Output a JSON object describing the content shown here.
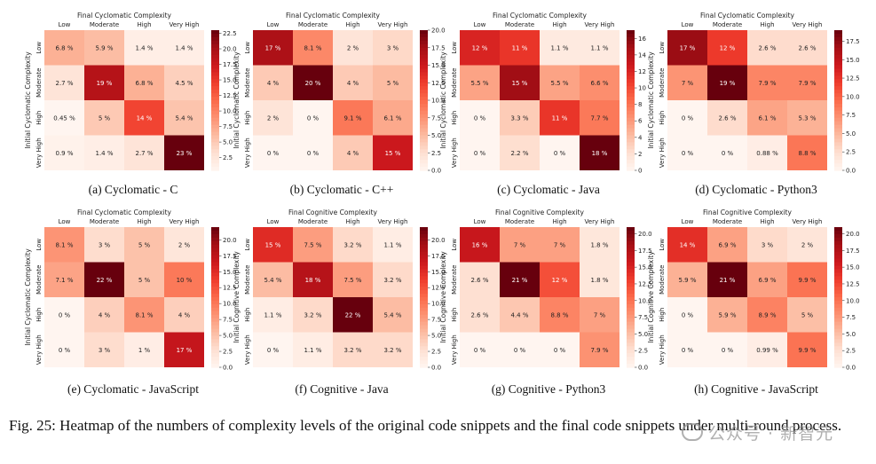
{
  "figure": {
    "caption": "Fig. 25: Heatmap of the numbers of complexity levels of the original code snippets and the final code snippets under multi-round process.",
    "watermark": "公众号 · 新智元"
  },
  "colors": {
    "scale": [
      "#fff5f0",
      "#fee0d2",
      "#fcbba1",
      "#fc9272",
      "#fb6a4a",
      "#ef3b2c",
      "#cb181d",
      "#a50f15",
      "#67000d"
    ]
  },
  "chart_data": [
    {
      "type": "heatmap",
      "caption": "(a) Cyclomatic - C",
      "title": "Final Cyclomatic Complexity",
      "ylabel": "Initial Cyclomatic Complexity",
      "x_categories": [
        "Low",
        "Moderate",
        "High",
        "Very High"
      ],
      "y_categories": [
        "Low",
        "Moderate",
        "High",
        "Very High"
      ],
      "values": [
        [
          6.8,
          5.9,
          1.4,
          1.4
        ],
        [
          2.7,
          19,
          6.8,
          4.5
        ],
        [
          0.45,
          5,
          14,
          5.4
        ],
        [
          0.9,
          1.4,
          2.7,
          23
        ]
      ],
      "labels": [
        [
          "6.8 %",
          "5.9 %",
          "1.4 %",
          "1.4 %"
        ],
        [
          "2.7 %",
          "19 %",
          "6.8 %",
          "4.5 %"
        ],
        [
          "0.45 %",
          "5 %",
          "14 %",
          "5.4 %"
        ],
        [
          "0.9 %",
          "1.4 %",
          "2.7 %",
          "23 %"
        ]
      ],
      "vmin": 0.45,
      "vmax": 23,
      "colorbar_ticks": [
        2.5,
        5.0,
        7.5,
        10.0,
        12.5,
        15.0,
        17.5,
        20.0,
        22.5
      ]
    },
    {
      "type": "heatmap",
      "caption": "(b) Cyclomatic - C++",
      "title": "Final Cyclomatic Complexity",
      "ylabel": "Initial Cyclomatic Complexity",
      "x_categories": [
        "Low",
        "Moderate",
        "High",
        "Very High"
      ],
      "y_categories": [
        "Low",
        "Moderate",
        "High",
        "Very High"
      ],
      "values": [
        [
          17,
          8.1,
          2,
          3
        ],
        [
          4,
          20,
          4,
          5
        ],
        [
          2,
          0,
          9.1,
          6.1
        ],
        [
          0,
          0,
          4,
          15
        ]
      ],
      "labels": [
        [
          "17 %",
          "8.1 %",
          "2 %",
          "3 %"
        ],
        [
          "4 %",
          "20 %",
          "4 %",
          "5 %"
        ],
        [
          "2 %",
          "0 %",
          "9.1 %",
          "6.1 %"
        ],
        [
          "0 %",
          "0 %",
          "4 %",
          "15 %"
        ]
      ],
      "vmin": 0,
      "vmax": 20,
      "colorbar_ticks": [
        0.0,
        2.5,
        5.0,
        7.5,
        10.0,
        12.5,
        15.0,
        17.5,
        20.0
      ]
    },
    {
      "type": "heatmap",
      "caption": "(c) Cyclomatic - Java",
      "title": "Final Cyclomatic Complexity",
      "ylabel": "Initial Cyclomatic Complexity",
      "x_categories": [
        "Low",
        "Moderate",
        "High",
        "Very High"
      ],
      "y_categories": [
        "Low",
        "Moderate",
        "High",
        "Very High"
      ],
      "values": [
        [
          12,
          11,
          1.1,
          1.1
        ],
        [
          5.5,
          15,
          5.5,
          6.6
        ],
        [
          0,
          3.3,
          11,
          7.7
        ],
        [
          0,
          2.2,
          0,
          18
        ]
      ],
      "labels": [
        [
          "12 %",
          "11 %",
          "1.1 %",
          "1.1 %"
        ],
        [
          "5.5 %",
          "15 %",
          "5.5 %",
          "6.6 %"
        ],
        [
          "0 %",
          "3.3 %",
          "11 %",
          "7.7 %"
        ],
        [
          "0 %",
          "2.2 %",
          "0 %",
          "18 %"
        ]
      ],
      "vmin": 0,
      "vmax": 17,
      "colorbar_ticks": [
        0,
        2,
        4,
        6,
        8,
        10,
        12,
        14,
        16
      ]
    },
    {
      "type": "heatmap",
      "caption": "(d) Cyclomatic - Python3",
      "title": "Final Cyclomatic Complexity",
      "ylabel": "Initial Cyclomatic Complexity",
      "x_categories": [
        "Low",
        "Moderate",
        "High",
        "Very High"
      ],
      "y_categories": [
        "Low",
        "Moderate",
        "High",
        "Very High"
      ],
      "values": [
        [
          17,
          12,
          2.6,
          2.6
        ],
        [
          7,
          19,
          7.9,
          7.9
        ],
        [
          0,
          2.6,
          6.1,
          5.3
        ],
        [
          0,
          0,
          0.88,
          8.8
        ]
      ],
      "labels": [
        [
          "17 %",
          "12 %",
          "2.6 %",
          "2.6 %"
        ],
        [
          "7 %",
          "19 %",
          "7.9 %",
          "7.9 %"
        ],
        [
          "0 %",
          "2.6 %",
          "6.1 %",
          "5.3 %"
        ],
        [
          "0 %",
          "0 %",
          "0.88 %",
          "8.8 %"
        ]
      ],
      "vmin": 0,
      "vmax": 19,
      "colorbar_ticks": [
        0.0,
        2.5,
        5.0,
        7.5,
        10.0,
        12.5,
        15.0,
        17.5
      ]
    },
    {
      "type": "heatmap",
      "caption": "(e) Cyclomatic - JavaScript",
      "title": "Final Cyclomatic Complexity",
      "ylabel": "Initial Cyclomatic Complexity",
      "x_categories": [
        "Low",
        "Moderate",
        "High",
        "Very High"
      ],
      "y_categories": [
        "Low",
        "Moderate",
        "High",
        "Very High"
      ],
      "values": [
        [
          8.1,
          3,
          5,
          2
        ],
        [
          7.1,
          22,
          5,
          10
        ],
        [
          0,
          4,
          8.1,
          4
        ],
        [
          0,
          3,
          1,
          17
        ]
      ],
      "labels": [
        [
          "8.1 %",
          "3 %",
          "5 %",
          "2 %"
        ],
        [
          "7.1 %",
          "22 %",
          "5 %",
          "10 %"
        ],
        [
          "0 %",
          "4 %",
          "8.1 %",
          "4 %"
        ],
        [
          "0 %",
          "3 %",
          "1 %",
          "17 %"
        ]
      ],
      "vmin": 0,
      "vmax": 22,
      "colorbar_ticks": [
        0.0,
        2.5,
        5.0,
        7.5,
        10.0,
        12.5,
        15.0,
        17.5,
        20.0
      ]
    },
    {
      "type": "heatmap",
      "caption": "(f) Cognitive - Java",
      "title": "Final Cognitive Complexity",
      "ylabel": "Initial Cognitive Complexity",
      "x_categories": [
        "Low",
        "Moderate",
        "High",
        "Very High"
      ],
      "y_categories": [
        "Low",
        "Moderate",
        "High",
        "Very High"
      ],
      "values": [
        [
          15,
          7.5,
          3.2,
          1.1
        ],
        [
          5.4,
          18,
          7.5,
          3.2
        ],
        [
          1.1,
          3.2,
          22,
          5.4
        ],
        [
          0,
          1.1,
          3.2,
          3.2
        ]
      ],
      "labels": [
        [
          "15 %",
          "7.5 %",
          "3.2 %",
          "1.1 %"
        ],
        [
          "5.4 %",
          "18 %",
          "7.5 %",
          "3.2 %"
        ],
        [
          "1.1 %",
          "3.2 %",
          "22 %",
          "5.4 %"
        ],
        [
          "0 %",
          "1.1 %",
          "3.2 %",
          "3.2 %"
        ]
      ],
      "vmin": 0,
      "vmax": 22,
      "colorbar_ticks": [
        0.0,
        2.5,
        5.0,
        7.5,
        10.0,
        12.5,
        15.0,
        17.5,
        20.0
      ]
    },
    {
      "type": "heatmap",
      "caption": "(g) Cognitive - Python3",
      "title": "Final Cognitive Complexity",
      "ylabel": "Initial Cognitive Complexity",
      "x_categories": [
        "Low",
        "Moderate",
        "High",
        "Very High"
      ],
      "y_categories": [
        "Low",
        "Moderate",
        "High",
        "Very High"
      ],
      "values": [
        [
          16,
          7,
          7,
          1.8
        ],
        [
          2.6,
          21,
          12,
          1.8
        ],
        [
          2.6,
          4.4,
          8.8,
          7
        ],
        [
          0,
          0,
          0,
          7.9
        ]
      ],
      "labels": [
        [
          "16 %",
          "7 %",
          "7 %",
          "1.8 %"
        ],
        [
          "2.6 %",
          "21 %",
          "12 %",
          "1.8 %"
        ],
        [
          "2.6 %",
          "4.4 %",
          "8.8 %",
          "7 %"
        ],
        [
          "0 %",
          "0 %",
          "0 %",
          "7.9 %"
        ]
      ],
      "vmin": 0,
      "vmax": 21,
      "colorbar_ticks": [
        0.0,
        2.5,
        5.0,
        7.5,
        10.0,
        12.5,
        15.0,
        17.5,
        20.0
      ]
    },
    {
      "type": "heatmap",
      "caption": "(h) Cognitive - JavaScript",
      "title": "Final Cognitive Complexity",
      "ylabel": "Initial Cognitive Complexity",
      "x_categories": [
        "Low",
        "Moderate",
        "High",
        "Very High"
      ],
      "y_categories": [
        "Low",
        "Moderate",
        "High",
        "Very High"
      ],
      "values": [
        [
          14,
          6.9,
          3,
          2
        ],
        [
          5.9,
          21,
          6.9,
          9.9
        ],
        [
          0,
          5.9,
          8.9,
          5
        ],
        [
          0,
          0,
          0.99,
          9.9
        ]
      ],
      "labels": [
        [
          "14 %",
          "6.9 %",
          "3 %",
          "2 %"
        ],
        [
          "5.9 %",
          "21 %",
          "6.9 %",
          "9.9 %"
        ],
        [
          "0 %",
          "5.9 %",
          "8.9 %",
          "5 %"
        ],
        [
          "0 %",
          "0 %",
          "0.99 %",
          "9.9 %"
        ]
      ],
      "vmin": 0,
      "vmax": 21,
      "colorbar_ticks": [
        0.0,
        2.5,
        5.0,
        7.5,
        10.0,
        12.5,
        15.0,
        17.5,
        20.0
      ]
    }
  ]
}
